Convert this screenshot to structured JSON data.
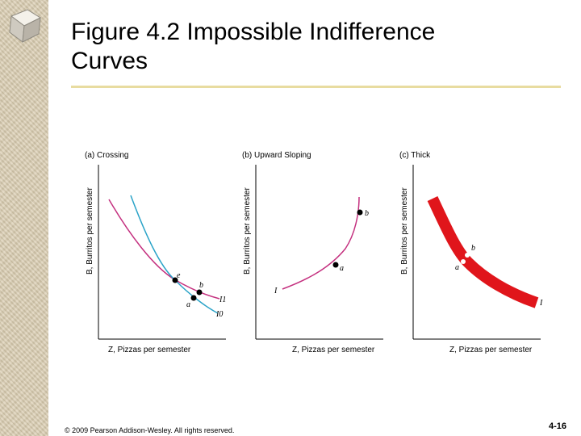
{
  "slide": {
    "title_line1": "Figure 4.2 Impossible Indifference",
    "title_line2": "Curves",
    "footer": "© 2009 Pearson Addison-Wesley. All rights reserved.",
    "page_number": "4-16"
  },
  "colors": {
    "curve_magenta": "#c4307f",
    "curve_blue": "#2aa3c8",
    "thick_red": "#e0151b",
    "rule": "#e8dca0",
    "sidebar": "#d9ccaf"
  },
  "panels": [
    {
      "title": "(a) Crossing",
      "ylabel": "B, Burritos per semester",
      "xlabel": "Z, Pizzas per semester",
      "labels": {
        "e": "e",
        "b": "b",
        "a": "a",
        "curve1": "I1",
        "curve0": "I0"
      }
    },
    {
      "title": "(b) Upward Sloping",
      "ylabel": "B, Burritos per semester",
      "xlabel": "Z, Pizzas per semester",
      "labels": {
        "a": "a",
        "b": "b",
        "curve": "I"
      }
    },
    {
      "title": "(c) Thick",
      "ylabel": "B, Burritos per semester",
      "xlabel": "Z, Pizzas per semester",
      "labels": {
        "a": "a",
        "b": "b",
        "curve": "I"
      }
    }
  ]
}
